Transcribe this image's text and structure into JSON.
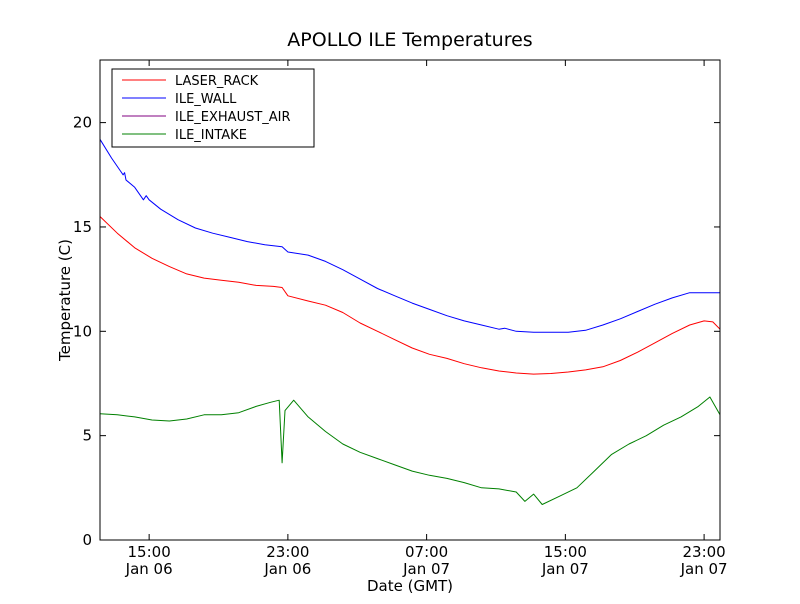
{
  "chart_data": {
    "type": "line",
    "title": "APOLLO ILE Temperatures",
    "xlabel": "Date (GMT)",
    "ylabel": "Temperature (C)",
    "x_unit": "hours",
    "xlim": [
      "2014-01-06 12:10",
      "2014-01-07 23:55"
    ],
    "ylim": [
      0,
      23
    ],
    "y_ticks": [
      0,
      5,
      10,
      15,
      20
    ],
    "x_ticks": [
      {
        "x": "2014-01-06 15:00",
        "time": "15:00",
        "date": "Jan 06"
      },
      {
        "x": "2014-01-06 23:00",
        "time": "23:00",
        "date": "Jan 06"
      },
      {
        "x": "2014-01-07 07:00",
        "time": "07:00",
        "date": "Jan 07"
      },
      {
        "x": "2014-01-07 15:00",
        "time": "15:00",
        "date": "Jan 07"
      },
      {
        "x": "2014-01-07 23:00",
        "time": "23:00",
        "date": "Jan 07"
      }
    ],
    "grid": false,
    "legend_position": "top-left",
    "series": [
      {
        "name": "LASER_RACK",
        "color": "#ff0000",
        "points": [
          [
            "2014-01-06 12:10",
            15.5
          ],
          [
            "2014-01-06 13:10",
            14.7
          ],
          [
            "2014-01-06 14:10",
            14.0
          ],
          [
            "2014-01-06 15:10",
            13.5
          ],
          [
            "2014-01-06 16:10",
            13.1
          ],
          [
            "2014-01-06 17:10",
            12.75
          ],
          [
            "2014-01-06 18:10",
            12.55
          ],
          [
            "2014-01-06 19:10",
            12.45
          ],
          [
            "2014-01-06 20:10",
            12.35
          ],
          [
            "2014-01-06 21:10",
            12.2
          ],
          [
            "2014-01-06 22:10",
            12.15
          ],
          [
            "2014-01-06 22:40",
            12.1
          ],
          [
            "2014-01-06 23:00",
            11.7
          ],
          [
            "2014-01-07 00:10",
            11.45
          ],
          [
            "2014-01-07 01:10",
            11.25
          ],
          [
            "2014-01-07 02:10",
            10.9
          ],
          [
            "2014-01-07 03:10",
            10.4
          ],
          [
            "2014-01-07 04:10",
            10.0
          ],
          [
            "2014-01-07 05:10",
            9.6
          ],
          [
            "2014-01-07 06:10",
            9.2
          ],
          [
            "2014-01-07 07:10",
            8.9
          ],
          [
            "2014-01-07 08:10",
            8.7
          ],
          [
            "2014-01-07 09:10",
            8.45
          ],
          [
            "2014-01-07 10:10",
            8.25
          ],
          [
            "2014-01-07 11:10",
            8.1
          ],
          [
            "2014-01-07 12:10",
            8.0
          ],
          [
            "2014-01-07 13:10",
            7.95
          ],
          [
            "2014-01-07 14:10",
            7.98
          ],
          [
            "2014-01-07 15:10",
            8.05
          ],
          [
            "2014-01-07 16:10",
            8.15
          ],
          [
            "2014-01-07 17:10",
            8.3
          ],
          [
            "2014-01-07 18:10",
            8.6
          ],
          [
            "2014-01-07 19:10",
            9.0
          ],
          [
            "2014-01-07 20:10",
            9.45
          ],
          [
            "2014-01-07 21:10",
            9.9
          ],
          [
            "2014-01-07 22:10",
            10.3
          ],
          [
            "2014-01-07 23:00",
            10.5
          ],
          [
            "2014-01-07 23:30",
            10.45
          ],
          [
            "2014-01-07 23:55",
            10.1
          ]
        ]
      },
      {
        "name": "ILE_WALL",
        "color": "#0000ff",
        "points": [
          [
            "2014-01-06 12:10",
            19.2
          ],
          [
            "2014-01-06 12:50",
            18.3
          ],
          [
            "2014-01-06 13:20",
            17.7
          ],
          [
            "2014-01-06 13:30",
            17.5
          ],
          [
            "2014-01-06 13:35",
            17.6
          ],
          [
            "2014-01-06 13:40",
            17.25
          ],
          [
            "2014-01-06 14:10",
            16.9
          ],
          [
            "2014-01-06 14:40",
            16.3
          ],
          [
            "2014-01-06 14:50",
            16.5
          ],
          [
            "2014-01-06 15:00",
            16.3
          ],
          [
            "2014-01-06 15:40",
            15.85
          ],
          [
            "2014-01-06 16:40",
            15.35
          ],
          [
            "2014-01-06 17:40",
            14.95
          ],
          [
            "2014-01-06 18:40",
            14.7
          ],
          [
            "2014-01-06 19:40",
            14.5
          ],
          [
            "2014-01-06 20:40",
            14.3
          ],
          [
            "2014-01-06 21:40",
            14.15
          ],
          [
            "2014-01-06 22:40",
            14.05
          ],
          [
            "2014-01-06 23:00",
            13.8
          ],
          [
            "2014-01-07 00:10",
            13.65
          ],
          [
            "2014-01-07 01:10",
            13.35
          ],
          [
            "2014-01-07 02:10",
            12.95
          ],
          [
            "2014-01-07 03:10",
            12.5
          ],
          [
            "2014-01-07 04:10",
            12.05
          ],
          [
            "2014-01-07 05:10",
            11.7
          ],
          [
            "2014-01-07 06:10",
            11.35
          ],
          [
            "2014-01-07 07:10",
            11.05
          ],
          [
            "2014-01-07 08:10",
            10.75
          ],
          [
            "2014-01-07 09:10",
            10.5
          ],
          [
            "2014-01-07 10:10",
            10.3
          ],
          [
            "2014-01-07 11:10",
            10.1
          ],
          [
            "2014-01-07 11:30",
            10.15
          ],
          [
            "2014-01-07 12:10",
            10.0
          ],
          [
            "2014-01-07 13:10",
            9.95
          ],
          [
            "2014-01-07 14:10",
            9.95
          ],
          [
            "2014-01-07 15:10",
            9.95
          ],
          [
            "2014-01-07 16:10",
            10.05
          ],
          [
            "2014-01-07 17:10",
            10.3
          ],
          [
            "2014-01-07 18:10",
            10.6
          ],
          [
            "2014-01-07 19:10",
            10.95
          ],
          [
            "2014-01-07 20:10",
            11.3
          ],
          [
            "2014-01-07 21:10",
            11.6
          ],
          [
            "2014-01-07 22:10",
            11.85
          ],
          [
            "2014-01-07 23:00",
            11.85
          ],
          [
            "2014-01-07 23:55",
            11.85
          ]
        ]
      },
      {
        "name": "ILE_EXHAUST_AIR",
        "color": "#800080",
        "points": []
      },
      {
        "name": "ILE_INTAKE",
        "color": "#008000",
        "points": [
          [
            "2014-01-06 12:10",
            6.05
          ],
          [
            "2014-01-06 13:10",
            6.0
          ],
          [
            "2014-01-06 14:10",
            5.9
          ],
          [
            "2014-01-06 15:10",
            5.75
          ],
          [
            "2014-01-06 16:10",
            5.7
          ],
          [
            "2014-01-06 17:10",
            5.8
          ],
          [
            "2014-01-06 18:10",
            6.0
          ],
          [
            "2014-01-06 19:10",
            6.0
          ],
          [
            "2014-01-06 20:10",
            6.1
          ],
          [
            "2014-01-06 21:10",
            6.4
          ],
          [
            "2014-01-06 22:00",
            6.6
          ],
          [
            "2014-01-06 22:30",
            6.7
          ],
          [
            "2014-01-06 22:40",
            3.7
          ],
          [
            "2014-01-06 22:50",
            6.2
          ],
          [
            "2014-01-06 23:20",
            6.7
          ],
          [
            "2014-01-07 00:10",
            5.9
          ],
          [
            "2014-01-07 01:10",
            5.2
          ],
          [
            "2014-01-07 02:10",
            4.6
          ],
          [
            "2014-01-07 03:10",
            4.2
          ],
          [
            "2014-01-07 04:10",
            3.9
          ],
          [
            "2014-01-07 05:10",
            3.6
          ],
          [
            "2014-01-07 06:10",
            3.3
          ],
          [
            "2014-01-07 07:10",
            3.1
          ],
          [
            "2014-01-07 08:10",
            2.95
          ],
          [
            "2014-01-07 09:10",
            2.75
          ],
          [
            "2014-01-07 10:10",
            2.5
          ],
          [
            "2014-01-07 11:10",
            2.45
          ],
          [
            "2014-01-07 12:10",
            2.3
          ],
          [
            "2014-01-07 12:40",
            1.85
          ],
          [
            "2014-01-07 13:10",
            2.2
          ],
          [
            "2014-01-07 13:40",
            1.7
          ],
          [
            "2014-01-07 14:40",
            2.1
          ],
          [
            "2014-01-07 15:40",
            2.5
          ],
          [
            "2014-01-07 16:40",
            3.3
          ],
          [
            "2014-01-07 17:40",
            4.1
          ],
          [
            "2014-01-07 18:40",
            4.6
          ],
          [
            "2014-01-07 19:40",
            5.0
          ],
          [
            "2014-01-07 20:40",
            5.5
          ],
          [
            "2014-01-07 21:40",
            5.9
          ],
          [
            "2014-01-07 22:40",
            6.4
          ],
          [
            "2014-01-07 23:20",
            6.85
          ],
          [
            "2014-01-07 23:55",
            6.0
          ]
        ]
      }
    ]
  }
}
